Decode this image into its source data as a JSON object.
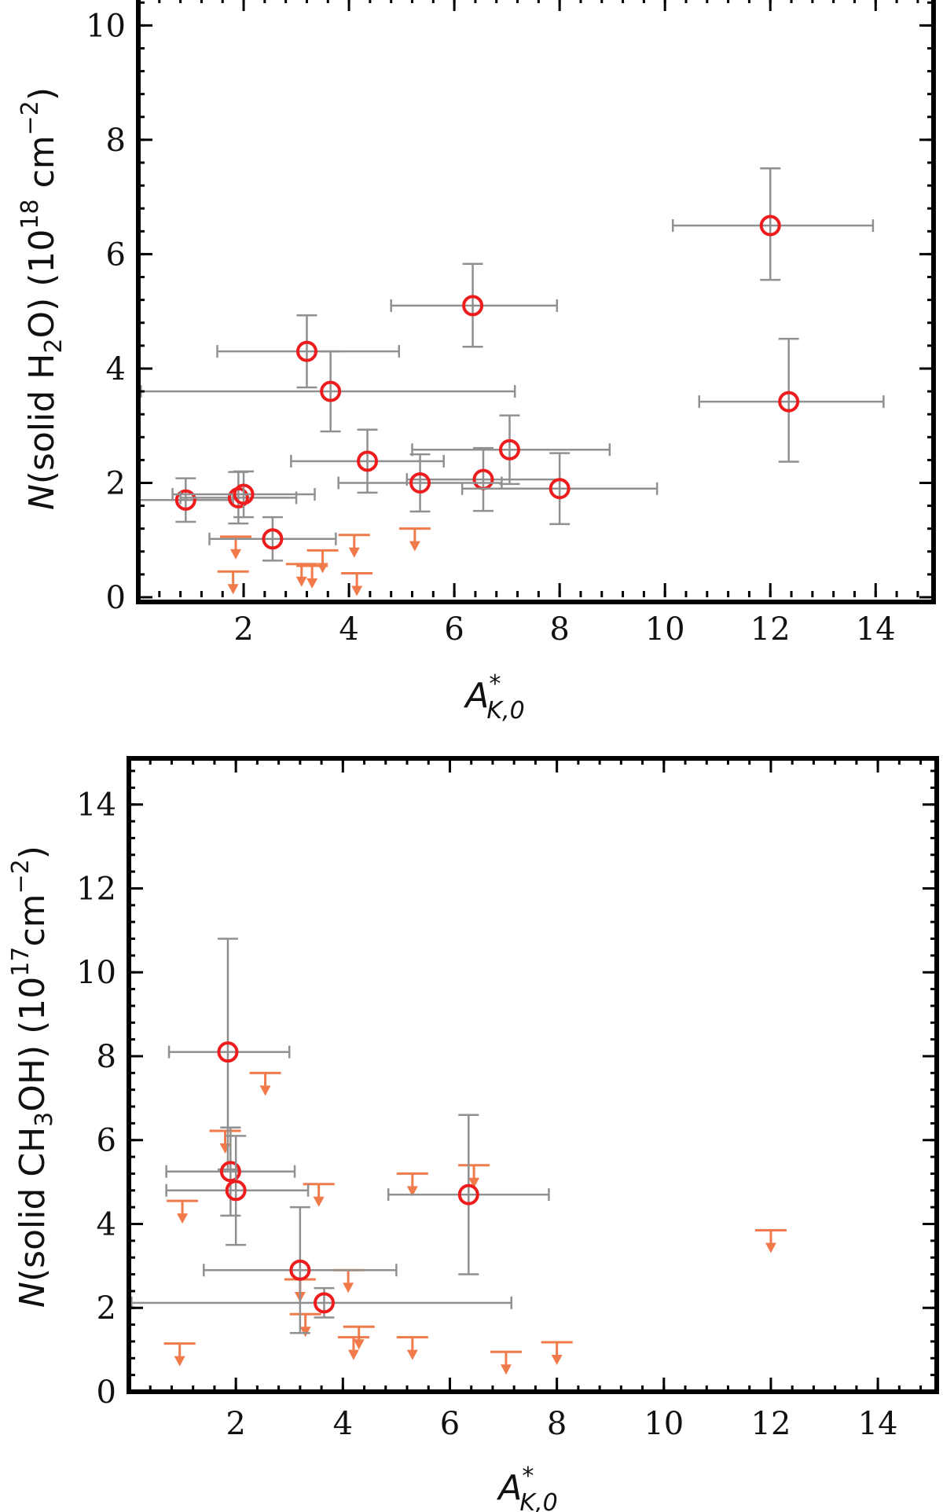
{
  "colors": {
    "detection": "#ee1c1c",
    "upper_limit": "#f07a4a",
    "errorbar": "#909090",
    "axis": "#000000"
  },
  "chart_data": [
    {
      "type": "scatter",
      "title": "",
      "xlabel_main": "A",
      "xlabel_sup": "*",
      "xlabel_sub": "K,0",
      "ylabel_pre": "N",
      "ylabel_body": "(solid H",
      "ylabel_sub": "2",
      "ylabel_post": "O) (10",
      "ylabel_exp": "18",
      "ylabel_unit": " cm",
      "ylabel_unit_exp": "−2",
      "ylabel_close": ")",
      "xlim": [
        0,
        15.1
      ],
      "ylim": [
        0,
        10.5
      ],
      "xticks": [
        2,
        4,
        6,
        8,
        10,
        12,
        14
      ],
      "xtick_labels": [
        "2",
        "4",
        "6",
        "8",
        "10",
        "12",
        "14"
      ],
      "yticks": [
        0,
        2,
        4,
        6,
        8,
        10
      ],
      "ytick_labels": [
        "0",
        "2",
        "4",
        "6",
        "8",
        "10"
      ],
      "minor_x_step": 0.4,
      "minor_y_step": 0.4,
      "detections": [
        {
          "x": 12.0,
          "y": 6.5,
          "xerr": [
            1.85,
            1.95
          ],
          "yerr": [
            0.95,
            1.0
          ]
        },
        {
          "x": 6.35,
          "y": 5.1,
          "xerr": [
            1.55,
            1.6
          ],
          "yerr": [
            0.72,
            0.73
          ]
        },
        {
          "x": 3.2,
          "y": 4.3,
          "xerr": [
            1.7,
            1.75
          ],
          "yerr": [
            0.63,
            0.63
          ]
        },
        {
          "x": 3.65,
          "y": 3.6,
          "xerr": [
            3.6,
            3.5
          ],
          "yerr": [
            0.7,
            0.7
          ]
        },
        {
          "x": 12.35,
          "y": 3.42,
          "xerr": [
            1.7,
            1.8
          ],
          "yerr": [
            1.05,
            1.1
          ]
        },
        {
          "x": 7.05,
          "y": 2.58,
          "xerr": [
            1.85,
            1.9
          ],
          "yerr": [
            0.6,
            0.6
          ]
        },
        {
          "x": 4.35,
          "y": 2.38,
          "xerr": [
            1.45,
            1.45
          ],
          "yerr": [
            0.55,
            0.55
          ]
        },
        {
          "x": 6.55,
          "y": 2.06,
          "xerr": [
            1.45,
            1.45
          ],
          "yerr": [
            0.55,
            0.55
          ]
        },
        {
          "x": 5.35,
          "y": 2.0,
          "xerr": [
            1.55,
            1.55
          ],
          "yerr": [
            0.5,
            0.5
          ]
        },
        {
          "x": 8.0,
          "y": 1.9,
          "xerr": [
            1.85,
            1.85
          ],
          "yerr": [
            0.62,
            0.62
          ]
        },
        {
          "x": 0.9,
          "y": 1.7,
          "xerr": [
            0.9,
            0.9
          ],
          "yerr": [
            0.38,
            0.38
          ]
        },
        {
          "x": 1.9,
          "y": 1.74,
          "xerr": [
            1.1,
            1.1
          ],
          "yerr": [
            0.45,
            0.45
          ]
        },
        {
          "x": 2.0,
          "y": 1.8,
          "xerr": [
            1.35,
            1.35
          ],
          "yerr": [
            0.4,
            0.4
          ]
        },
        {
          "x": 2.55,
          "y": 1.02,
          "xerr": [
            1.2,
            1.2
          ],
          "yerr": [
            0.38,
            0.38
          ]
        }
      ],
      "upper_limits": [
        {
          "x": 1.85,
          "y": 1.06
        },
        {
          "x": 1.8,
          "y": 0.45
        },
        {
          "x": 3.1,
          "y": 0.58
        },
        {
          "x": 3.3,
          "y": 0.55
        },
        {
          "x": 3.5,
          "y": 0.82
        },
        {
          "x": 4.1,
          "y": 1.09
        },
        {
          "x": 4.15,
          "y": 0.42
        },
        {
          "x": 5.25,
          "y": 1.2
        }
      ]
    },
    {
      "type": "scatter",
      "title": "",
      "xlabel_main": "A",
      "xlabel_sup": "*",
      "xlabel_sub": "K,0",
      "ylabel_pre": "N",
      "ylabel_body": "(solid CH",
      "ylabel_sub": "3",
      "ylabel_post": "OH) (10",
      "ylabel_exp": "17",
      "ylabel_unit": "cm",
      "ylabel_unit_exp": "−2",
      "ylabel_close": ")",
      "xlim": [
        0,
        15.1
      ],
      "ylim": [
        0,
        15.1
      ],
      "xticks": [
        2,
        4,
        6,
        8,
        10,
        12,
        14
      ],
      "xtick_labels": [
        "2",
        "4",
        "6",
        "8",
        "10",
        "12",
        "14"
      ],
      "yticks": [
        0,
        2,
        4,
        6,
        8,
        10,
        12,
        14
      ],
      "ytick_labels": [
        "0",
        "2",
        "4",
        "6",
        "8",
        "10",
        "12",
        "14"
      ],
      "minor_x_step": 0.4,
      "minor_y_step": 0.4,
      "detections": [
        {
          "x": 1.85,
          "y": 8.1,
          "xerr": [
            1.1,
            1.15
          ],
          "yerr": [
            2.8,
            2.7
          ]
        },
        {
          "x": 1.9,
          "y": 5.25,
          "xerr": [
            1.2,
            1.2
          ],
          "yerr": [
            1.05,
            1.05
          ]
        },
        {
          "x": 2.0,
          "y": 4.8,
          "xerr": [
            1.3,
            1.35
          ],
          "yerr": [
            1.3,
            1.3
          ]
        },
        {
          "x": 6.35,
          "y": 4.7,
          "xerr": [
            1.5,
            1.5
          ],
          "yerr": [
            1.9,
            1.9
          ]
        },
        {
          "x": 3.2,
          "y": 2.9,
          "xerr": [
            1.8,
            1.8
          ],
          "yerr": [
            1.5,
            1.5
          ]
        },
        {
          "x": 3.65,
          "y": 2.12,
          "xerr": [
            3.6,
            3.5
          ],
          "yerr": [
            0.35,
            0.35
          ]
        }
      ],
      "upper_limits": [
        {
          "x": 2.55,
          "y": 7.6
        },
        {
          "x": 1.8,
          "y": 6.22
        },
        {
          "x": 1.0,
          "y": 4.55
        },
        {
          "x": 3.55,
          "y": 4.95
        },
        {
          "x": 5.3,
          "y": 5.2
        },
        {
          "x": 6.45,
          "y": 5.4
        },
        {
          "x": 3.2,
          "y": 2.68
        },
        {
          "x": 4.1,
          "y": 2.9
        },
        {
          "x": 3.3,
          "y": 1.85
        },
        {
          "x": 4.2,
          "y": 1.3
        },
        {
          "x": 4.3,
          "y": 1.55
        },
        {
          "x": 5.3,
          "y": 1.3
        },
        {
          "x": 0.95,
          "y": 1.15
        },
        {
          "x": 7.05,
          "y": 0.95
        },
        {
          "x": 8.0,
          "y": 1.18
        },
        {
          "x": 12.0,
          "y": 3.85
        }
      ]
    }
  ]
}
